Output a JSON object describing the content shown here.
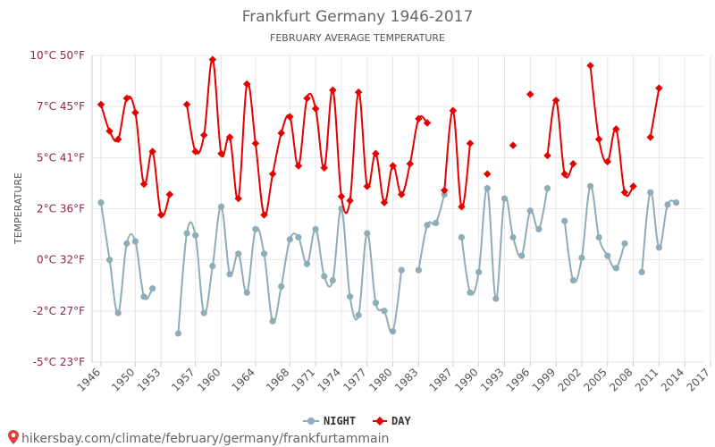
{
  "colors": {
    "night": "#8fadb8",
    "day": "#e60000",
    "grid": "#e6e6e6",
    "axis": "#cccccc"
  },
  "footer": {
    "url": "hikersbay.com/climate/february/germany/frankfurtammain",
    "pin_icon": "location-pin-icon"
  },
  "chart_data": {
    "type": "line",
    "title": "Frankfurt Germany 1946-2017",
    "subtitle": "FEBRUARY AVERAGE TEMPERATURE",
    "ylabel": "TEMPERATURE",
    "xlabel": "",
    "ylim": [
      -5,
      10
    ],
    "yticks": [
      {
        "value": -5,
        "label": "-5°C 23°F"
      },
      {
        "value": -2.5,
        "label": "-2°C 27°F"
      },
      {
        "value": 0,
        "label": "0°C 32°F"
      },
      {
        "value": 2.5,
        "label": "2°C 36°F"
      },
      {
        "value": 5,
        "label": "5°C 41°F"
      },
      {
        "value": 7.5,
        "label": "7°C 45°F"
      },
      {
        "value": 10,
        "label": "10°C 50°F"
      }
    ],
    "xlim": [
      1946,
      2017
    ],
    "xticks": [
      1946,
      1950,
      1953,
      1957,
      1960,
      1964,
      1968,
      1971,
      1974,
      1977,
      1980,
      1983,
      1987,
      1990,
      1993,
      1996,
      1999,
      2002,
      2005,
      2008,
      2011,
      2014,
      2017
    ],
    "legend": {
      "position": "bottom-center"
    },
    "grid": true,
    "series": [
      {
        "name": "NIGHT",
        "color": "#8fadb8",
        "points": [
          [
            1946,
            2.8
          ],
          [
            1947,
            0
          ],
          [
            1948,
            -2.6
          ],
          [
            1949,
            0.8
          ],
          [
            1950,
            0.9
          ],
          [
            1951,
            -1.8
          ],
          [
            1952,
            -1.4
          ],
          null,
          [
            1955,
            -3.6
          ],
          [
            1956,
            1.3
          ],
          [
            1957,
            1.2
          ],
          [
            1958,
            -2.6
          ],
          [
            1959,
            -0.3
          ],
          [
            1960,
            2.6
          ],
          [
            1961,
            -0.7
          ],
          [
            1962,
            0.3
          ],
          [
            1963,
            -1.6
          ],
          [
            1964,
            1.5
          ],
          [
            1965,
            0.3
          ],
          [
            1966,
            -3.0
          ],
          [
            1967,
            -1.3
          ],
          [
            1968,
            1.0
          ],
          [
            1969,
            1.1
          ],
          [
            1970,
            -0.2
          ],
          [
            1971,
            1.5
          ],
          [
            1972,
            -0.8
          ],
          [
            1973,
            -1.0
          ],
          [
            1974,
            2.5
          ],
          [
            1975,
            -1.8
          ],
          [
            1976,
            -2.7
          ],
          [
            1977,
            1.3
          ],
          [
            1978,
            -2.1
          ],
          [
            1979,
            -2.5
          ],
          [
            1980,
            -3.5
          ],
          [
            1981,
            -0.5
          ],
          null,
          [
            1983,
            -0.5
          ],
          [
            1984,
            1.7
          ],
          [
            1985,
            1.8
          ],
          [
            1986,
            3.2
          ],
          null,
          [
            1988,
            1.1
          ],
          [
            1989,
            -1.6
          ],
          [
            1990,
            -0.6
          ],
          [
            1991,
            3.5
          ],
          [
            1992,
            -1.9
          ],
          [
            1993,
            3.0
          ],
          [
            1994,
            1.1
          ],
          [
            1995,
            0.2
          ],
          [
            1996,
            2.4
          ],
          [
            1997,
            1.5
          ],
          [
            1998,
            3.5
          ],
          null,
          [
            2000,
            1.9
          ],
          [
            2001,
            -1.0
          ],
          [
            2002,
            0.1
          ],
          [
            2003,
            3.6
          ],
          [
            2004,
            1.1
          ],
          [
            2005,
            0.2
          ],
          [
            2006,
            -0.4
          ],
          [
            2007,
            0.8
          ],
          null,
          [
            2009,
            -0.6
          ],
          [
            2010,
            3.3
          ],
          [
            2011,
            0.6
          ],
          [
            2012,
            2.7
          ],
          [
            2013,
            2.8
          ]
        ]
      },
      {
        "name": "DAY",
        "color": "#e60000",
        "points": [
          [
            1946,
            7.6
          ],
          [
            1947,
            6.3
          ],
          [
            1948,
            5.9
          ],
          [
            1949,
            7.9
          ],
          [
            1950,
            7.2
          ],
          [
            1951,
            3.7
          ],
          [
            1952,
            5.3
          ],
          [
            1953,
            2.2
          ],
          [
            1954,
            3.2
          ],
          null,
          [
            1956,
            7.6
          ],
          [
            1957,
            5.3
          ],
          [
            1958,
            6.1
          ],
          [
            1959,
            9.8
          ],
          [
            1960,
            5.2
          ],
          [
            1961,
            6.0
          ],
          [
            1962,
            3.0
          ],
          [
            1963,
            8.6
          ],
          [
            1964,
            5.7
          ],
          [
            1965,
            2.2
          ],
          [
            1966,
            4.2
          ],
          [
            1967,
            6.2
          ],
          [
            1968,
            7.0
          ],
          [
            1969,
            4.6
          ],
          [
            1970,
            7.9
          ],
          [
            1971,
            7.4
          ],
          [
            1972,
            4.5
          ],
          [
            1973,
            8.3
          ],
          [
            1974,
            3.1
          ],
          [
            1975,
            2.9
          ],
          [
            1976,
            8.2
          ],
          [
            1977,
            3.6
          ],
          [
            1978,
            5.2
          ],
          [
            1979,
            2.8
          ],
          [
            1980,
            4.6
          ],
          [
            1981,
            3.2
          ],
          [
            1982,
            4.7
          ],
          [
            1983,
            6.9
          ],
          [
            1984,
            6.7
          ],
          null,
          [
            1986,
            3.4
          ],
          [
            1987,
            7.3
          ],
          [
            1988,
            2.6
          ],
          [
            1989,
            5.7
          ],
          null,
          [
            1991,
            4.2
          ],
          null,
          [
            1994,
            5.6
          ],
          null,
          [
            1996,
            8.1
          ],
          null,
          [
            1998,
            5.1
          ],
          [
            1999,
            7.8
          ],
          [
            2000,
            4.2
          ],
          [
            2001,
            4.7
          ],
          null,
          [
            2003,
            9.5
          ],
          [
            2004,
            5.9
          ],
          [
            2005,
            4.8
          ],
          [
            2006,
            6.4
          ],
          [
            2007,
            3.3
          ],
          [
            2008,
            3.6
          ],
          null,
          [
            2010,
            6.0
          ],
          [
            2011,
            8.4
          ]
        ]
      }
    ]
  }
}
